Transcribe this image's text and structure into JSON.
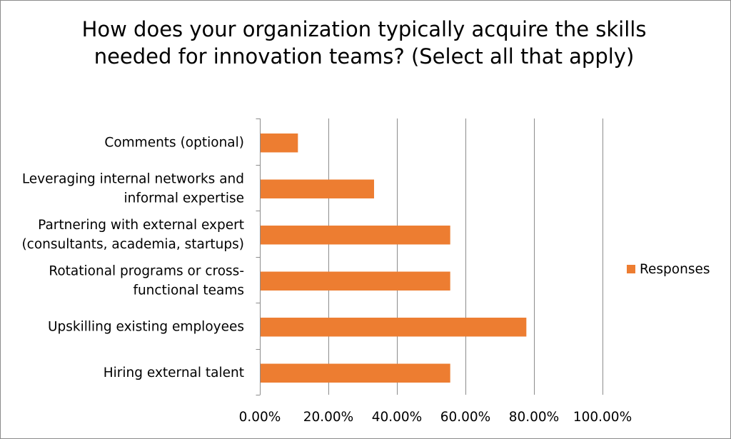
{
  "chart_data": {
    "type": "bar",
    "orientation": "horizontal",
    "title": "How does your organization typically acquire the skills needed for innovation teams? (Select all that apply)",
    "categories": [
      [
        "Comments (optional)"
      ],
      [
        "Leveraging internal networks and",
        "informal expertise"
      ],
      [
        "Partnering with external expert",
        "(consultants, academia, startups)"
      ],
      [
        "Rotational programs or cross-",
        "functional teams"
      ],
      [
        "Upskilling existing employees"
      ],
      [
        "Hiring external talent"
      ]
    ],
    "series": [
      {
        "name": "Responses",
        "color": "#ed7d31",
        "values": [
          0.1111,
          0.3333,
          0.5556,
          0.5556,
          0.7778,
          0.5556
        ]
      }
    ],
    "xlim": [
      0,
      1
    ],
    "x_ticks": [
      0,
      0.2,
      0.4,
      0.6,
      0.8,
      1.0
    ],
    "x_tick_labels": [
      "0.00%",
      "20.00%",
      "40.00%",
      "60.00%",
      "80.00%",
      "100.00%"
    ],
    "grid": "vertical",
    "legend_position": "right"
  }
}
